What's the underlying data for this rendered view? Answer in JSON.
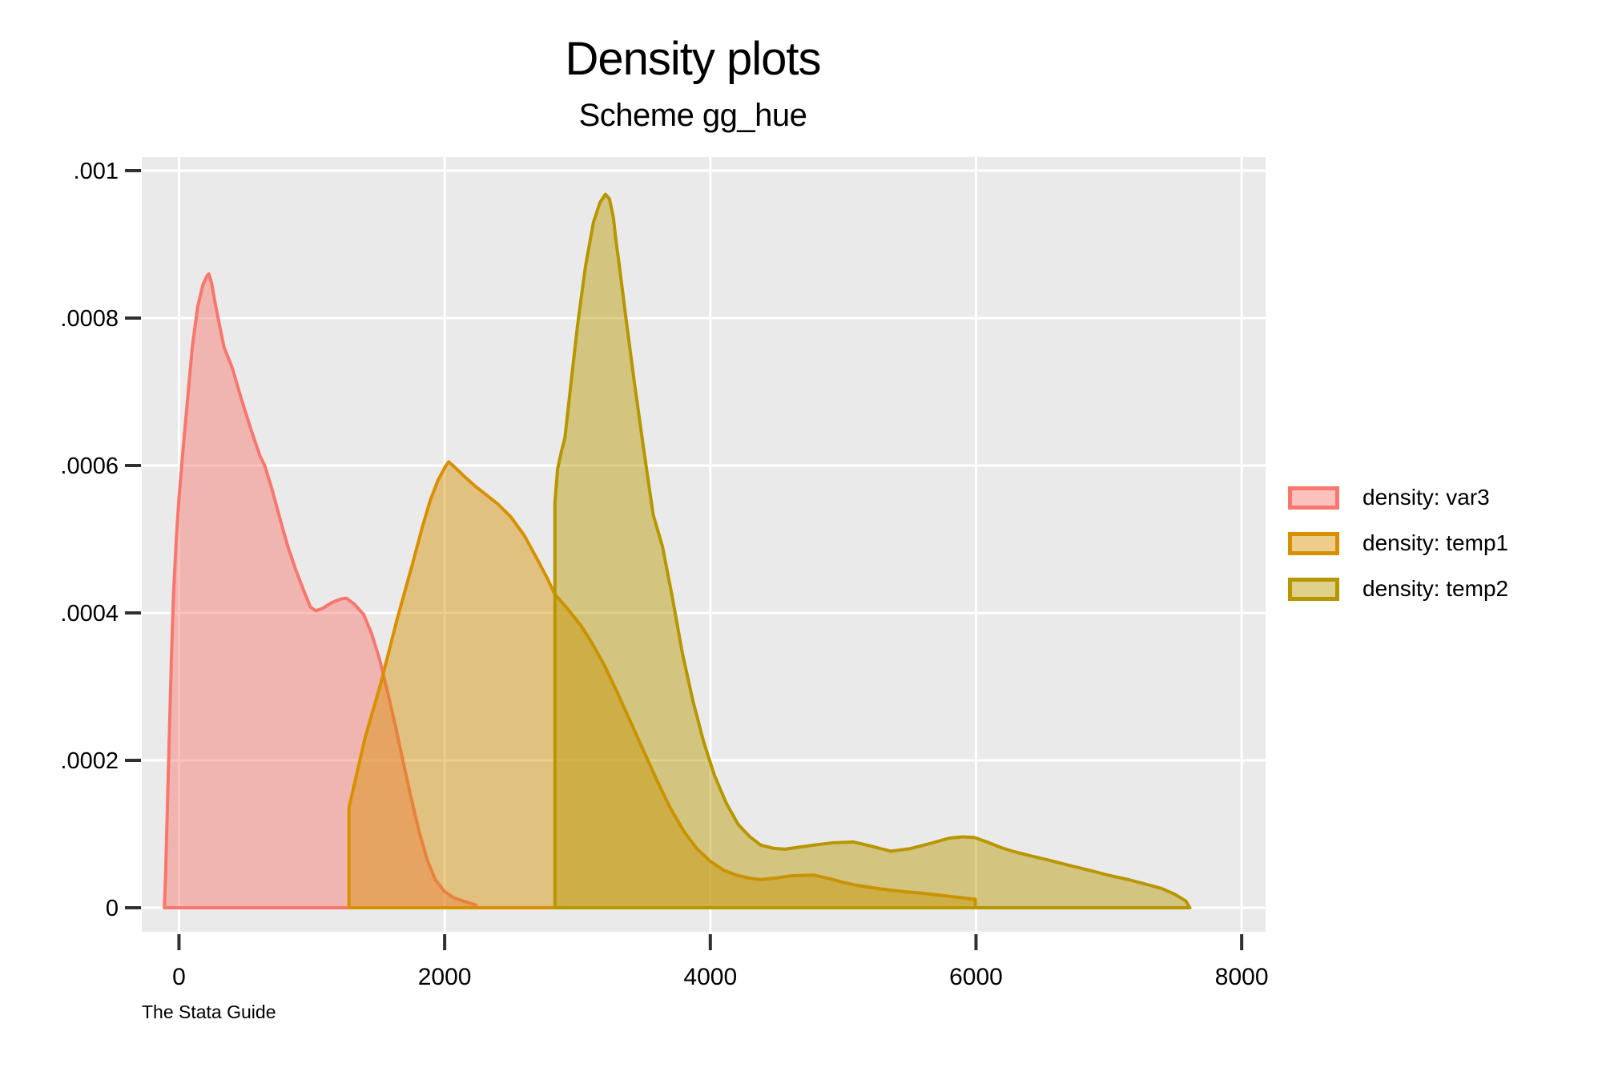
{
  "header": {
    "title": "Density plots",
    "subtitle": "Scheme gg_hue"
  },
  "footer": {
    "watermark": "The Stata Guide"
  },
  "legend": {
    "position": "right"
  },
  "colors": {
    "plot_background": "#EAEAEA",
    "grid": "#FFFFFF",
    "tick": "#303030",
    "text": "#000000"
  },
  "chart_data": {
    "type": "area",
    "title": "Density plots",
    "subtitle": "Scheme gg_hue",
    "xlabel": "",
    "ylabel": "",
    "xlim": [
      -280,
      8180
    ],
    "ylim": [
      -3.26e-05,
      0.0010185
    ],
    "grid": true,
    "legend_position": "right",
    "x_ticks": [
      {
        "value": 0,
        "label": "0"
      },
      {
        "value": 2000,
        "label": "2000"
      },
      {
        "value": 4000,
        "label": "4000"
      },
      {
        "value": 6000,
        "label": "6000"
      },
      {
        "value": 8000,
        "label": "8000"
      }
    ],
    "y_ticks": [
      {
        "value": 0,
        "label": "0"
      },
      {
        "value": 0.0002,
        "label": ".0002"
      },
      {
        "value": 0.0004,
        "label": ".0004"
      },
      {
        "value": 0.0006,
        "label": ".0006"
      },
      {
        "value": 0.0008,
        "label": ".0008"
      },
      {
        "value": 0.001,
        "label": ".001"
      }
    ],
    "series": [
      {
        "name": "density: var3",
        "color": "#F8766D",
        "fill_opacity": 0.45,
        "points": [
          [
            -110,
            0
          ],
          [
            -100,
            5e-05
          ],
          [
            -85,
            0.00015
          ],
          [
            -70,
            0.00025
          ],
          [
            -55,
            0.00035
          ],
          [
            -40,
            0.00043
          ],
          [
            -20,
            0.0005
          ],
          [
            0,
            0.000555
          ],
          [
            20,
            0.0006
          ],
          [
            45,
            0.00065
          ],
          [
            70,
            0.0007
          ],
          [
            100,
            0.00076
          ],
          [
            140,
            0.000815
          ],
          [
            180,
            0.000845
          ],
          [
            210,
            0.000857
          ],
          [
            225,
            0.00086
          ],
          [
            245,
            0.000848
          ],
          [
            275,
            0.000818
          ],
          [
            300,
            0.000795
          ],
          [
            340,
            0.00076
          ],
          [
            400,
            0.000733
          ],
          [
            470,
            0.00069
          ],
          [
            540,
            0.00065
          ],
          [
            610,
            0.000613
          ],
          [
            645,
            0.0006
          ],
          [
            700,
            0.000568
          ],
          [
            760,
            0.000528
          ],
          [
            820,
            0.00049
          ],
          [
            880,
            0.000458
          ],
          [
            940,
            0.00043
          ],
          [
            990,
            0.000408
          ],
          [
            1030,
            0.000403
          ],
          [
            1080,
            0.000406
          ],
          [
            1150,
            0.000414
          ],
          [
            1220,
            0.000419
          ],
          [
            1260,
            0.00042
          ],
          [
            1320,
            0.000412
          ],
          [
            1390,
            0.000398
          ],
          [
            1450,
            0.000372
          ],
          [
            1510,
            0.000337
          ],
          [
            1570,
            0.000293
          ],
          [
            1630,
            0.000246
          ],
          [
            1690,
            0.000196
          ],
          [
            1750,
            0.000147
          ],
          [
            1810,
            0.000102
          ],
          [
            1870,
            6.4e-05
          ],
          [
            1930,
            3.8e-05
          ],
          [
            2000,
            2.2e-05
          ],
          [
            2070,
            1.35e-05
          ],
          [
            2150,
            8.5e-06
          ],
          [
            2230,
            4e-06
          ],
          [
            2250,
            0
          ]
        ]
      },
      {
        "name": "density: temp1",
        "color": "#D89000",
        "fill_opacity": 0.45,
        "points": [
          [
            1280,
            0
          ],
          [
            1280,
            0.000136
          ],
          [
            1400,
            0.00023
          ],
          [
            1520,
            0.000305
          ],
          [
            1640,
            0.00039
          ],
          [
            1760,
            0.000468
          ],
          [
            1830,
            0.000515
          ],
          [
            1890,
            0.000552
          ],
          [
            1950,
            0.00058
          ],
          [
            2000,
            0.000597
          ],
          [
            2030,
            0.000605
          ],
          [
            2080,
            0.000597
          ],
          [
            2150,
            0.000585
          ],
          [
            2230,
            0.000572
          ],
          [
            2300,
            0.000562
          ],
          [
            2400,
            0.000548
          ],
          [
            2500,
            0.00053
          ],
          [
            2600,
            0.000505
          ],
          [
            2700,
            0.000472
          ],
          [
            2770,
            0.000448
          ],
          [
            2830,
            0.000425
          ],
          [
            2900,
            0.000411
          ],
          [
            2960,
            0.000398
          ],
          [
            3030,
            0.000382
          ],
          [
            3100,
            0.000362
          ],
          [
            3200,
            0.00033
          ],
          [
            3300,
            0.000292
          ],
          [
            3400,
            0.000252
          ],
          [
            3500,
            0.000212
          ],
          [
            3600,
            0.000172
          ],
          [
            3700,
            0.000135
          ],
          [
            3800,
            0.000104
          ],
          [
            3900,
            8e-05
          ],
          [
            4000,
            6.3e-05
          ],
          [
            4100,
            5.1e-05
          ],
          [
            4200,
            4.4e-05
          ],
          [
            4300,
            4e-05
          ],
          [
            4380,
            3.82e-05
          ],
          [
            4500,
            4.05e-05
          ],
          [
            4620,
            4.35e-05
          ],
          [
            4780,
            4.44e-05
          ],
          [
            4900,
            3.95e-05
          ],
          [
            5000,
            3.45e-05
          ],
          [
            5100,
            3.05e-05
          ],
          [
            5220,
            2.72e-05
          ],
          [
            5350,
            2.4e-05
          ],
          [
            5480,
            2.15e-05
          ],
          [
            5590,
            1.99e-05
          ],
          [
            5720,
            1.72e-05
          ],
          [
            5850,
            1.45e-05
          ],
          [
            5930,
            1.28e-05
          ],
          [
            5995,
            1.15e-05
          ],
          [
            5995,
            0
          ]
        ]
      },
      {
        "name": "density: temp2",
        "color": "#B79600",
        "fill_opacity": 0.45,
        "points": [
          [
            2830,
            0
          ],
          [
            2830,
            0.00055
          ],
          [
            2850,
            0.000595
          ],
          [
            2880,
            0.00062
          ],
          [
            2905,
            0.000637
          ],
          [
            2950,
            0.00071
          ],
          [
            3000,
            0.00079
          ],
          [
            3060,
            0.00087
          ],
          [
            3120,
            0.00093
          ],
          [
            3170,
            0.000957
          ],
          [
            3210,
            0.000968
          ],
          [
            3240,
            0.000962
          ],
          [
            3270,
            0.000937
          ],
          [
            3290,
            0.000905
          ],
          [
            3310,
            0.000878
          ],
          [
            3370,
            0.000793
          ],
          [
            3430,
            0.00071
          ],
          [
            3500,
            0.00062
          ],
          [
            3570,
            0.000533
          ],
          [
            3640,
            0.00049
          ],
          [
            3710,
            0.000425
          ],
          [
            3790,
            0.000345
          ],
          [
            3870,
            0.00028
          ],
          [
            3950,
            0.000225
          ],
          [
            4030,
            0.00018
          ],
          [
            4120,
            0.000142
          ],
          [
            4210,
            0.000113
          ],
          [
            4300,
            9.6e-05
          ],
          [
            4380,
            8.5e-05
          ],
          [
            4480,
            8.05e-05
          ],
          [
            4560,
            7.95e-05
          ],
          [
            4680,
            8.25e-05
          ],
          [
            4800,
            8.55e-05
          ],
          [
            4920,
            8.8e-05
          ],
          [
            5080,
            8.92e-05
          ],
          [
            5200,
            8.4e-05
          ],
          [
            5360,
            7.68e-05
          ],
          [
            5500,
            8e-05
          ],
          [
            5650,
            8.7e-05
          ],
          [
            5800,
            9.45e-05
          ],
          [
            5900,
            9.62e-05
          ],
          [
            5990,
            9.52e-05
          ],
          [
            6100,
            8.8e-05
          ],
          [
            6190,
            8.15e-05
          ],
          [
            6290,
            7.6e-05
          ],
          [
            6420,
            7e-05
          ],
          [
            6560,
            6.4e-05
          ],
          [
            6700,
            5.75e-05
          ],
          [
            6850,
            5.1e-05
          ],
          [
            7000,
            4.4e-05
          ],
          [
            7150,
            3.8e-05
          ],
          [
            7300,
            3.1e-05
          ],
          [
            7400,
            2.6e-05
          ],
          [
            7500,
            1.8e-05
          ],
          [
            7580,
            9e-06
          ],
          [
            7610,
            0
          ]
        ]
      }
    ]
  }
}
